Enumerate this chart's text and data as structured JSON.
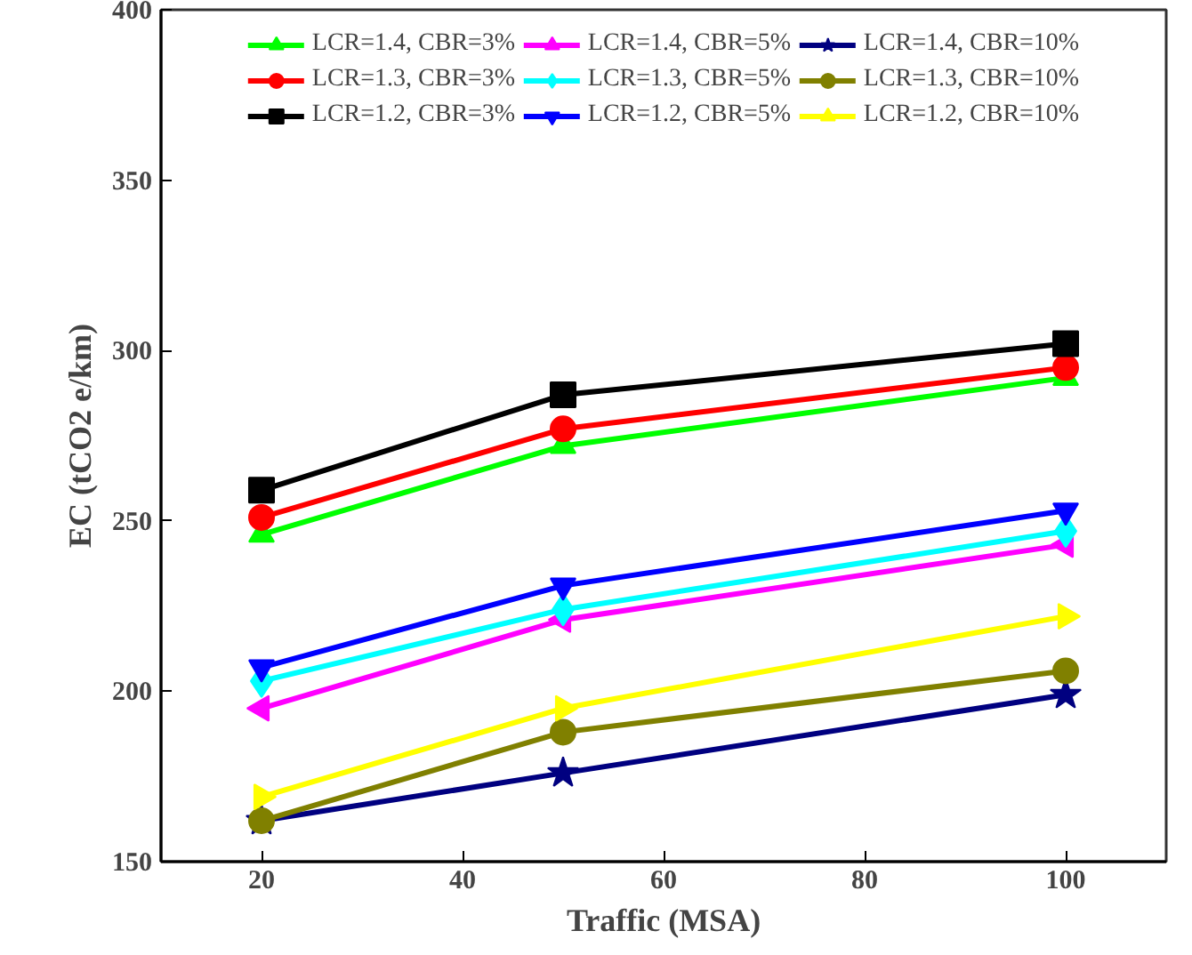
{
  "chart_data": {
    "type": "line",
    "xlabel": "Traffic (MSA)",
    "ylabel": "EC (tCO2 e/km)",
    "x": [
      20,
      50,
      100
    ],
    "xlim": [
      10,
      110
    ],
    "xticks": [
      20,
      40,
      60,
      80,
      100
    ],
    "ylim": [
      150,
      400
    ],
    "yticks": [
      150,
      200,
      250,
      300,
      350,
      400
    ],
    "grid": false,
    "legend": "top",
    "series": [
      {
        "name": "LCR=1.4, CBR=3%",
        "color": "#00ff00",
        "marker": "triangle",
        "values": [
          246,
          272,
          292
        ]
      },
      {
        "name": "LCR=1.3, CBR=3%",
        "color": "#ff0000",
        "marker": "circle",
        "values": [
          251,
          277,
          295
        ]
      },
      {
        "name": "LCR=1.2, CBR=3%",
        "color": "#000000",
        "marker": "square",
        "values": [
          259,
          287,
          302
        ]
      },
      {
        "name": "LCR=1.4, CBR=5%",
        "color": "#ff00ff",
        "marker": "triangle_left",
        "values": [
          195,
          221,
          243
        ]
      },
      {
        "name": "LCR=1.3, CBR=5%",
        "color": "#00ffff",
        "marker": "diamond",
        "values": [
          203,
          224,
          247
        ]
      },
      {
        "name": "LCR=1.2, CBR=5%",
        "color": "#0000ff",
        "marker": "triangle_down",
        "values": [
          207,
          231,
          253
        ]
      },
      {
        "name": "LCR=1.4, CBR=10%",
        "color": "#000080",
        "marker": "star",
        "values": [
          162,
          176,
          199
        ]
      },
      {
        "name": "LCR=1.3, CBR=10%",
        "color": "#808000",
        "marker": "circle",
        "values": [
          162,
          188,
          206
        ]
      },
      {
        "name": "LCR=1.2, CBR=10%",
        "color": "#ffff00",
        "marker": "triangle_right",
        "values": [
          169,
          195,
          222
        ]
      }
    ]
  }
}
